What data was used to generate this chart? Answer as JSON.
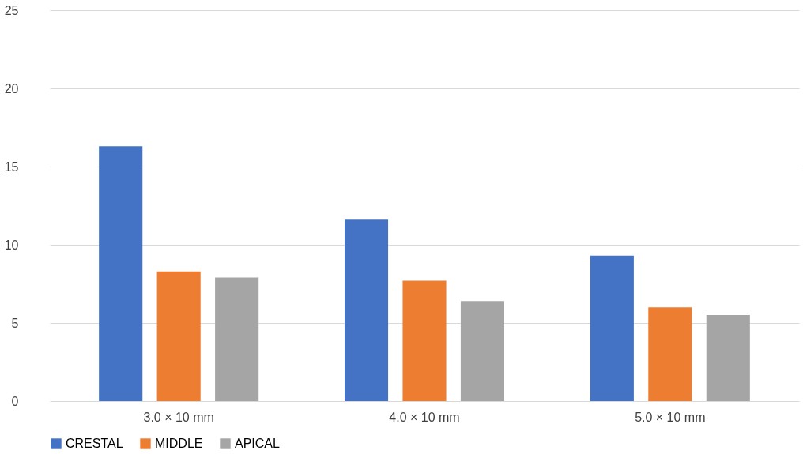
{
  "chart_data": {
    "type": "bar",
    "categories": [
      "3.0 × 10 mm",
      "4.0 × 10 mm",
      "5.0 × 10 mm"
    ],
    "series": [
      {
        "name": "CRESTAL",
        "color": "#4472c4",
        "values": [
          16.3,
          11.6,
          9.3
        ]
      },
      {
        "name": "MIDDLE",
        "color": "#ed7d31",
        "values": [
          8.3,
          7.7,
          6.0
        ]
      },
      {
        "name": "APICAL",
        "color": "#a5a5a5",
        "values": [
          7.9,
          6.4,
          5.5
        ]
      }
    ],
    "ylim": [
      0,
      25
    ],
    "yticks": [
      0,
      5,
      10,
      15,
      20,
      25
    ],
    "grid": "y",
    "legend": "bottom"
  }
}
